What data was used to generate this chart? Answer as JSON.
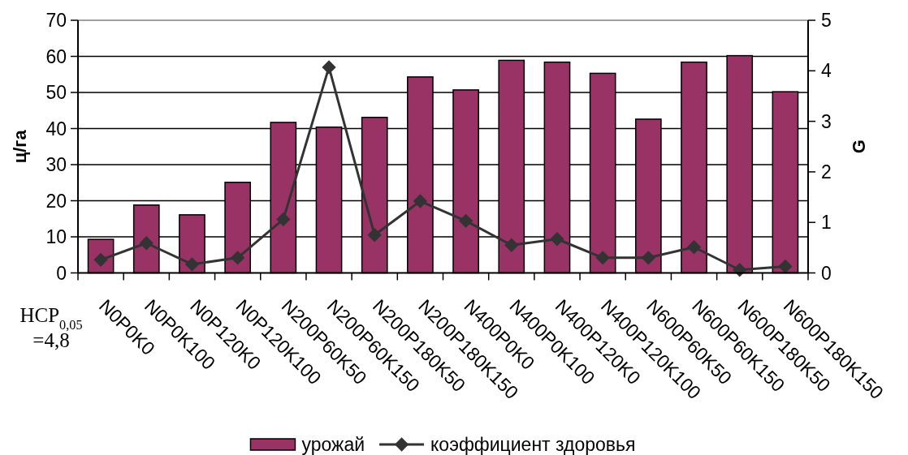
{
  "chart_data": {
    "type": "bar",
    "categories": [
      "N0P0K0",
      "N0P0K100",
      "N0P120K0",
      "N0P120K100",
      "N200P60K50",
      "N200P60K150",
      "N200P180K50",
      "N200P180K150",
      "N400P0K0",
      "N400P0K100",
      "N400P120K0",
      "N400P120K100",
      "N600P60K50",
      "N600P60K150",
      "N600P180K50",
      "N600P180K150"
    ],
    "series": [
      {
        "name": "урожай",
        "color": "#993366",
        "values": [
          9.3,
          18.8,
          16.1,
          25.1,
          41.7,
          40.4,
          43.1,
          54.3,
          50.7,
          58.9,
          58.4,
          55.3,
          42.6,
          58.4,
          60.2,
          50.2
        ]
      },
      {
        "name": "коэффициент здоровья",
        "type": "line",
        "axis": "y2",
        "color": "#333333",
        "values": [
          0.26,
          0.59,
          0.17,
          0.3,
          1.06,
          4.07,
          0.75,
          1.42,
          1.03,
          0.55,
          0.67,
          0.3,
          0.3,
          0.51,
          0.06,
          0.13
        ]
      }
    ],
    "ylabel": "ц/га",
    "y2label": "G",
    "ylim": [
      0,
      70
    ],
    "yticks": [
      0,
      10,
      20,
      30,
      40,
      50,
      60,
      70
    ],
    "y2lim": [
      0,
      5
    ],
    "y2ticks": [
      0,
      1,
      2,
      3,
      4,
      5
    ],
    "grid": "y",
    "legend": "bottom",
    "marker": "diamond",
    "annotations": [
      "НСР$_{0,05}$\n=4,8"
    ]
  }
}
